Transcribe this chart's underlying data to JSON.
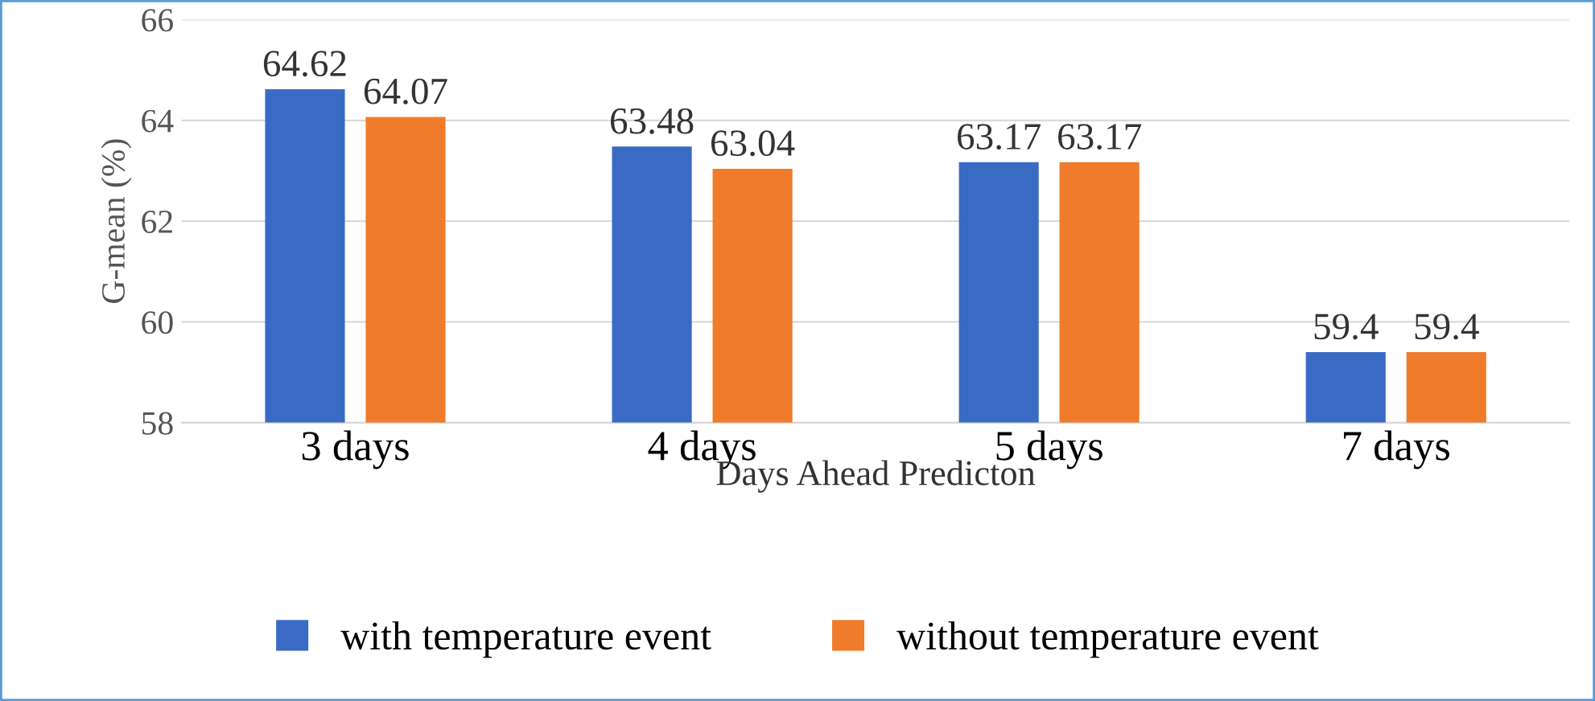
{
  "chart_data": {
    "type": "bar",
    "xlabel": "Days Ahead Predicton",
    "ylabel": "G-mean (%)",
    "categories": [
      "3 days",
      "4 days",
      "5 days",
      "7 days"
    ],
    "series": [
      {
        "name": "with temperature event",
        "color": "#3a6bc4",
        "values": [
          64.62,
          63.48,
          63.17,
          59.4
        ]
      },
      {
        "name": "without temperature event",
        "color": "#f07b2b",
        "values": [
          64.07,
          63.04,
          63.17,
          59.4
        ]
      }
    ],
    "ylim": [
      58,
      66
    ],
    "yticks": [
      58,
      60,
      62,
      64,
      66
    ],
    "grid": "y",
    "legend": "bottom",
    "data_labels": true
  }
}
